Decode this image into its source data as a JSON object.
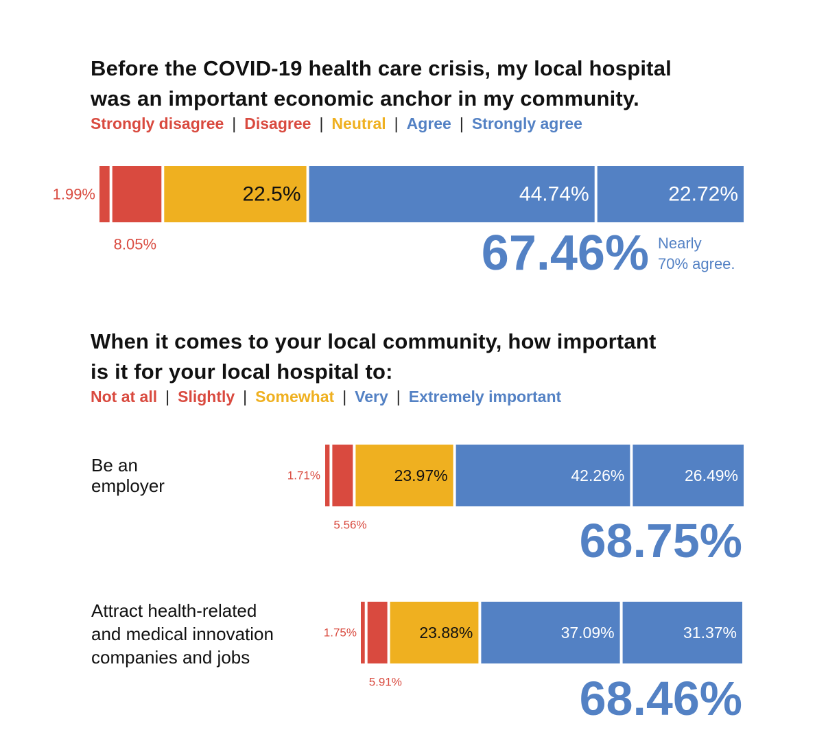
{
  "chart_data": [
    {
      "type": "bar",
      "orientation": "horizontal-stacked",
      "title": "Before the COVID-19 health care crisis, my local hospital was an important economic anchor in my community.",
      "legend": [
        "Strongly disagree",
        "Disagree",
        "Neutral",
        "Agree",
        "Strongly agree"
      ],
      "xlim": [
        0,
        100
      ],
      "series": [
        {
          "name": "Strongly disagree",
          "value": 1.99,
          "label": "1.99%"
        },
        {
          "name": "Disagree",
          "value": 8.05,
          "label": "8.05%"
        },
        {
          "name": "Neutral",
          "value": 22.5,
          "label": "22.5%"
        },
        {
          "name": "Agree",
          "value": 44.74,
          "label": "44.74%"
        },
        {
          "name": "Strongly agree",
          "value": 22.72,
          "label": "22.72%"
        }
      ],
      "total": "67.46%",
      "total_note": [
        "Nearly",
        "70% agree."
      ]
    },
    {
      "type": "bar",
      "orientation": "horizontal-stacked",
      "title": "When it comes to your local community, how important is it for your local hospital to:",
      "legend": [
        "Not at all",
        "Slightly",
        "Somewhat",
        "Very",
        "Extremely important"
      ],
      "xlim": [
        0,
        100
      ],
      "rows": [
        {
          "label": "Be an employer",
          "series": [
            {
              "name": "Not at all",
              "value": 1.71,
              "label": "1.71%"
            },
            {
              "name": "Slightly",
              "value": 5.56,
              "label": "5.56%"
            },
            {
              "name": "Somewhat",
              "value": 23.97,
              "label": "23.97%"
            },
            {
              "name": "Very",
              "value": 42.26,
              "label": "42.26%"
            },
            {
              "name": "Extremely important",
              "value": 26.49,
              "label": "26.49%"
            }
          ],
          "total": "68.75%"
        },
        {
          "label": "Attract health-related and medical innovation companies and jobs",
          "series": [
            {
              "name": "Not at all",
              "value": 1.75,
              "label": "1.75%"
            },
            {
              "name": "Slightly",
              "value": 5.91,
              "label": "5.91%"
            },
            {
              "name": "Somewhat",
              "value": 23.88,
              "label": "23.88%"
            },
            {
              "name": "Very",
              "value": 37.09,
              "label": "37.09%"
            },
            {
              "name": "Extremely important",
              "value": 31.37,
              "label": "31.37%"
            }
          ],
          "total": "68.46%"
        }
      ]
    }
  ],
  "colors": {
    "disagree": "#d94a3f",
    "neutral": "#efb020",
    "agree": "#5381c4"
  },
  "text": {
    "title1_line1": "Before the COVID-19 health care crisis, my local hospital",
    "title1_line2": "was an important economic anchor in my community.",
    "title2_line1": "When it comes to your local community, how important",
    "title2_line2": "is it for your local hospital to:",
    "row1_line1": "Be an",
    "row1_line2": "employer",
    "row2_line1": "Attract health-related",
    "row2_line2": "and medical innovation",
    "row2_line3": "companies and jobs"
  }
}
